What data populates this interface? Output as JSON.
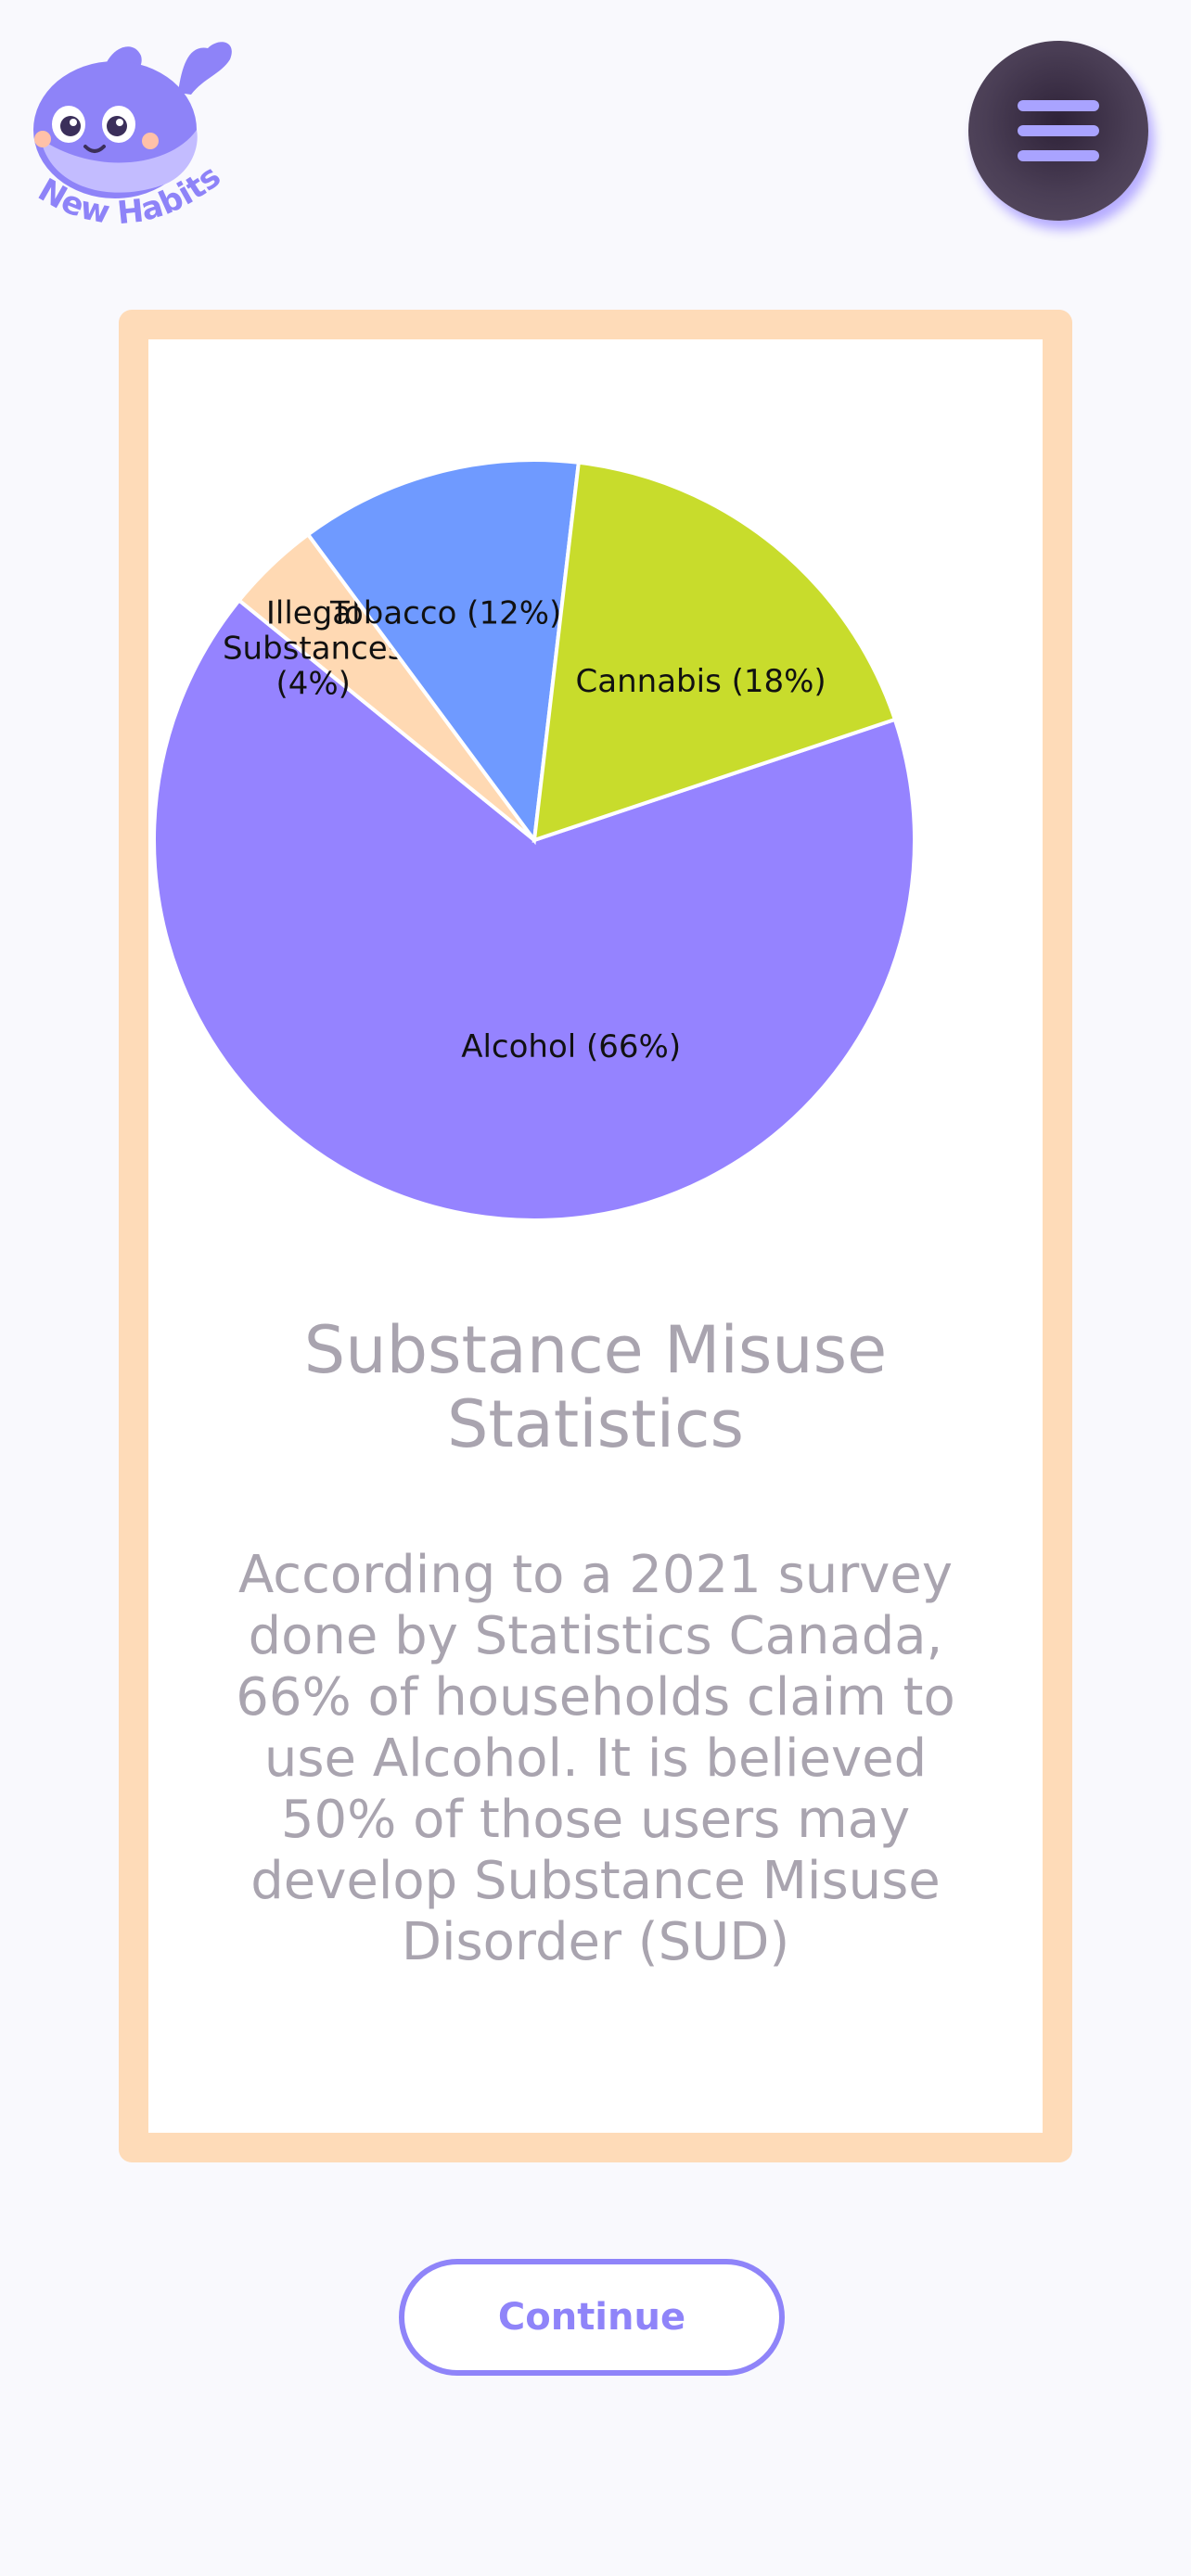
{
  "brand": {
    "name": "New Habits",
    "mascot": "whale-mascot",
    "color": "#8e83f8"
  },
  "header": {
    "menu_icon": "hamburger-icon"
  },
  "card": {
    "title": "Substance Misuse Statistics",
    "body": "According to a 2021 survey done by Statistics Canada, 66% of households claim to use Alcohol. It is believed 50% of those users may develop Substance Misuse Disorder (SUD)",
    "border_color": "#fedbb8"
  },
  "chart_data": {
    "type": "pie",
    "labels": [
      "Alcohol (66%)",
      "Illegal Substances (4%)",
      "Tobacco (12%)",
      "Cannabis (18%)"
    ],
    "values": [
      66,
      4,
      12,
      18
    ],
    "colors": [
      "#9583ff",
      "#ffd9b3",
      "#6f9aff",
      "#c8dc2c"
    ]
  },
  "actions": {
    "continue_label": "Continue"
  },
  "colors": {
    "accent": "#8f84f9",
    "background": "#f9f9fd",
    "text_muted": "#a9a4af"
  }
}
